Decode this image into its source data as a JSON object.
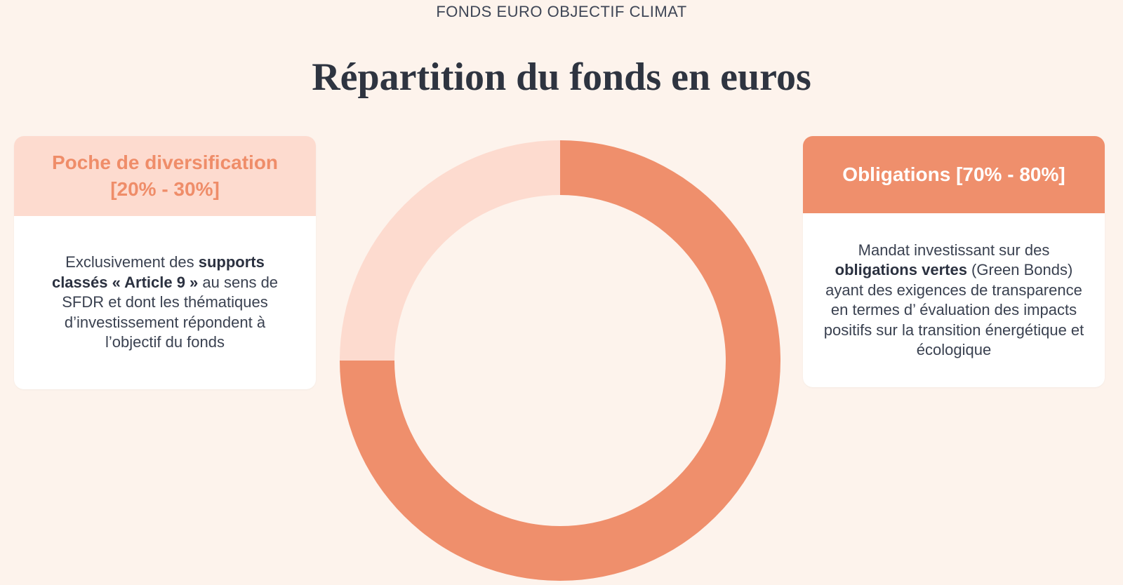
{
  "header": {
    "eyebrow": "FONDS EURO OBJECTIF CLIMAT",
    "title": "Répartition du fonds en euros"
  },
  "left_card": {
    "title": "Poche de diversification [20% - 30%]",
    "body_intro": "Exclusivement des ",
    "body_bold": "supports classés « Article 9 »",
    "body_rest": " au sens de SFDR et dont les thématiques d’investissement répondent à l’objectif du fonds"
  },
  "right_card": {
    "title": "Obligations [70% - 80%]",
    "body_intro": "Mandat investissant sur des ",
    "body_bold": "obligations vertes",
    "body_rest": " (Green Bonds) ayant des exigences de transparence en termes d’ évaluation des impacts positifs sur la transition énergétique et écologique"
  },
  "chart_data": {
    "type": "pie",
    "donut": true,
    "categories": [
      "Obligations",
      "Poche de diversification"
    ],
    "values": [
      75,
      25
    ],
    "colors": [
      "#ef8f6c",
      "#fddbcf"
    ]
  }
}
